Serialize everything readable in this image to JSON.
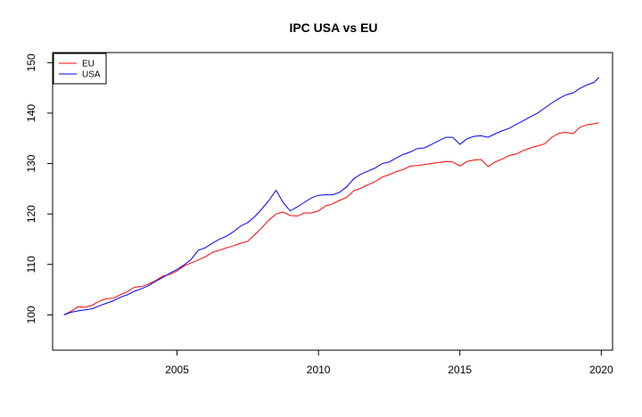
{
  "chart_data": {
    "type": "line",
    "title": "IPC USA vs EU",
    "xlabel": "",
    "ylabel": "",
    "xlim": [
      2000.6,
      2020.4
    ],
    "ylim": [
      93,
      152
    ],
    "x_ticks": [
      2005,
      2010,
      2015,
      2020
    ],
    "x_tick_labels": [
      "2005",
      "2010",
      "2015",
      "2020"
    ],
    "y_ticks": [
      100,
      110,
      120,
      130,
      140,
      150
    ],
    "y_tick_labels": [
      "100",
      "110",
      "120",
      "130",
      "140",
      "150"
    ],
    "grid": false,
    "legend": {
      "position": "top-left",
      "entries": [
        "EU",
        "USA"
      ]
    },
    "series": [
      {
        "name": "EU",
        "color": "#ff0000",
        "line_style": "solid",
        "points": [
          [
            2001.0,
            100.0
          ],
          [
            2001.25,
            100.7
          ],
          [
            2001.5,
            101.6
          ],
          [
            2001.75,
            101.5
          ],
          [
            2002.0,
            101.9
          ],
          [
            2002.25,
            102.7
          ],
          [
            2002.5,
            103.2
          ],
          [
            2002.75,
            103.3
          ],
          [
            2003.0,
            104.0
          ],
          [
            2003.25,
            104.6
          ],
          [
            2003.5,
            105.5
          ],
          [
            2003.75,
            105.6
          ],
          [
            2004.0,
            106.1
          ],
          [
            2004.25,
            106.8
          ],
          [
            2004.5,
            107.7
          ],
          [
            2004.75,
            108.0
          ],
          [
            2005.0,
            108.7
          ],
          [
            2005.25,
            109.7
          ],
          [
            2005.5,
            110.3
          ],
          [
            2005.75,
            110.9
          ],
          [
            2006.0,
            111.5
          ],
          [
            2006.25,
            112.4
          ],
          [
            2006.5,
            112.8
          ],
          [
            2006.75,
            113.3
          ],
          [
            2007.0,
            113.7
          ],
          [
            2007.25,
            114.2
          ],
          [
            2007.5,
            114.6
          ],
          [
            2007.75,
            115.9
          ],
          [
            2008.0,
            117.3
          ],
          [
            2008.25,
            118.8
          ],
          [
            2008.5,
            120.0
          ],
          [
            2008.75,
            120.4
          ],
          [
            2009.0,
            119.7
          ],
          [
            2009.25,
            119.6
          ],
          [
            2009.5,
            120.2
          ],
          [
            2009.75,
            120.2
          ],
          [
            2010.0,
            120.6
          ],
          [
            2010.25,
            121.6
          ],
          [
            2010.5,
            122.0
          ],
          [
            2010.75,
            122.7
          ],
          [
            2011.0,
            123.3
          ],
          [
            2011.25,
            124.6
          ],
          [
            2011.5,
            125.1
          ],
          [
            2011.75,
            125.8
          ],
          [
            2012.0,
            126.4
          ],
          [
            2012.25,
            127.3
          ],
          [
            2012.5,
            127.8
          ],
          [
            2012.75,
            128.4
          ],
          [
            2013.0,
            128.8
          ],
          [
            2013.25,
            129.5
          ],
          [
            2013.5,
            129.6
          ],
          [
            2013.75,
            129.8
          ],
          [
            2014.0,
            130.0
          ],
          [
            2014.25,
            130.2
          ],
          [
            2014.5,
            130.4
          ],
          [
            2014.75,
            130.3
          ],
          [
            2015.0,
            129.5
          ],
          [
            2015.25,
            130.4
          ],
          [
            2015.5,
            130.7
          ],
          [
            2015.75,
            130.8
          ],
          [
            2016.0,
            129.4
          ],
          [
            2016.25,
            130.3
          ],
          [
            2016.5,
            130.9
          ],
          [
            2016.75,
            131.6
          ],
          [
            2017.0,
            131.9
          ],
          [
            2017.25,
            132.6
          ],
          [
            2017.5,
            133.1
          ],
          [
            2017.75,
            133.5
          ],
          [
            2018.0,
            133.9
          ],
          [
            2018.25,
            135.2
          ],
          [
            2018.5,
            136.0
          ],
          [
            2018.75,
            136.2
          ],
          [
            2019.0,
            135.9
          ],
          [
            2019.25,
            137.2
          ],
          [
            2019.5,
            137.7
          ],
          [
            2019.75,
            137.9
          ],
          [
            2019.92,
            138.1
          ]
        ]
      },
      {
        "name": "USA",
        "color": "#0000ff",
        "line_style": "solid",
        "points": [
          [
            2001.0,
            100.0
          ],
          [
            2001.25,
            100.5
          ],
          [
            2001.5,
            100.8
          ],
          [
            2001.75,
            101.0
          ],
          [
            2002.0,
            101.2
          ],
          [
            2002.25,
            101.8
          ],
          [
            2002.5,
            102.3
          ],
          [
            2002.75,
            102.8
          ],
          [
            2003.0,
            103.5
          ],
          [
            2003.25,
            104.0
          ],
          [
            2003.5,
            104.7
          ],
          [
            2003.75,
            105.2
          ],
          [
            2004.0,
            105.8
          ],
          [
            2004.25,
            106.7
          ],
          [
            2004.5,
            107.4
          ],
          [
            2004.75,
            108.3
          ],
          [
            2005.0,
            109.0
          ],
          [
            2005.25,
            109.9
          ],
          [
            2005.5,
            111.0
          ],
          [
            2005.75,
            112.8
          ],
          [
            2006.0,
            113.3
          ],
          [
            2006.25,
            114.2
          ],
          [
            2006.5,
            115.0
          ],
          [
            2006.75,
            115.6
          ],
          [
            2007.0,
            116.5
          ],
          [
            2007.25,
            117.6
          ],
          [
            2007.5,
            118.3
          ],
          [
            2007.75,
            119.5
          ],
          [
            2008.0,
            121.0
          ],
          [
            2008.25,
            122.7
          ],
          [
            2008.5,
            124.7
          ],
          [
            2008.75,
            122.3
          ],
          [
            2009.0,
            120.6
          ],
          [
            2009.25,
            121.4
          ],
          [
            2009.5,
            122.3
          ],
          [
            2009.75,
            123.2
          ],
          [
            2010.0,
            123.7
          ],
          [
            2010.25,
            123.8
          ],
          [
            2010.5,
            123.8
          ],
          [
            2010.75,
            124.3
          ],
          [
            2011.0,
            125.4
          ],
          [
            2011.25,
            127.0
          ],
          [
            2011.5,
            127.9
          ],
          [
            2011.75,
            128.5
          ],
          [
            2012.0,
            129.1
          ],
          [
            2012.25,
            130.0
          ],
          [
            2012.5,
            130.3
          ],
          [
            2012.75,
            131.1
          ],
          [
            2013.0,
            131.8
          ],
          [
            2013.25,
            132.3
          ],
          [
            2013.5,
            133.0
          ],
          [
            2013.75,
            133.1
          ],
          [
            2014.0,
            133.8
          ],
          [
            2014.25,
            134.5
          ],
          [
            2014.5,
            135.2
          ],
          [
            2014.75,
            135.2
          ],
          [
            2015.0,
            133.8
          ],
          [
            2015.25,
            134.9
          ],
          [
            2015.5,
            135.4
          ],
          [
            2015.75,
            135.5
          ],
          [
            2016.0,
            135.2
          ],
          [
            2016.25,
            135.9
          ],
          [
            2016.5,
            136.5
          ],
          [
            2016.75,
            137.0
          ],
          [
            2017.0,
            137.8
          ],
          [
            2017.25,
            138.5
          ],
          [
            2017.5,
            139.3
          ],
          [
            2017.75,
            140.0
          ],
          [
            2018.0,
            141.0
          ],
          [
            2018.25,
            142.0
          ],
          [
            2018.5,
            142.9
          ],
          [
            2018.75,
            143.6
          ],
          [
            2019.0,
            144.0
          ],
          [
            2019.25,
            144.9
          ],
          [
            2019.5,
            145.6
          ],
          [
            2019.75,
            146.1
          ],
          [
            2019.92,
            147.1
          ]
        ]
      }
    ]
  }
}
